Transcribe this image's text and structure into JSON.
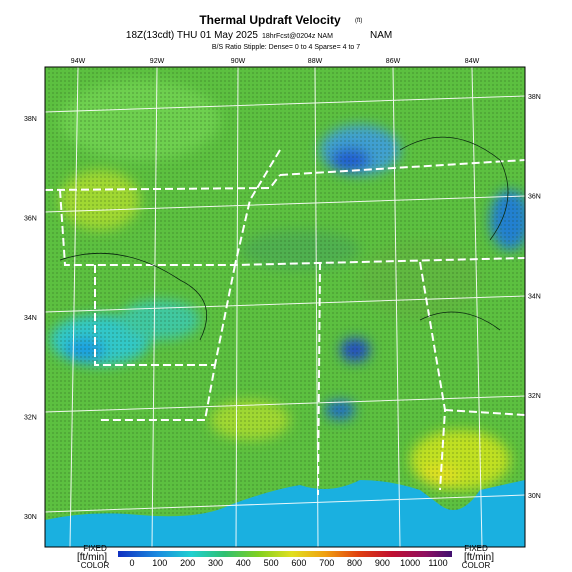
{
  "header": {
    "title": "Thermal Updraft Velocity",
    "title_unit": "(ft)",
    "valid_time": "18Z(13cdt) THU 01 May 2025",
    "forecast": "18hrFcst@0204z NAM",
    "stipple_note": "B/S Ratio Stipple: Dense= 0 to 4 Sparse= 4 to 7"
  },
  "map": {
    "lon_labels": [
      "94W",
      "92W",
      "90W",
      "88W",
      "86W",
      "84W"
    ],
    "lat_labels_left": [
      "38N",
      "36N",
      "34N",
      "32N",
      "30N"
    ],
    "lat_labels_right": [
      "38N",
      "36N",
      "34N",
      "32N",
      "30N"
    ]
  },
  "colorbar": {
    "left_label": {
      "top": "FIXED",
      "unit": "[ft/min]",
      "bottom": "COLOR"
    },
    "right_label": {
      "top": "FIXED",
      "unit": "[ft/min]",
      "bottom": "COLOR"
    },
    "ticks": [
      0,
      100,
      200,
      300,
      400,
      500,
      600,
      700,
      800,
      900,
      1000,
      1100
    ]
  }
}
